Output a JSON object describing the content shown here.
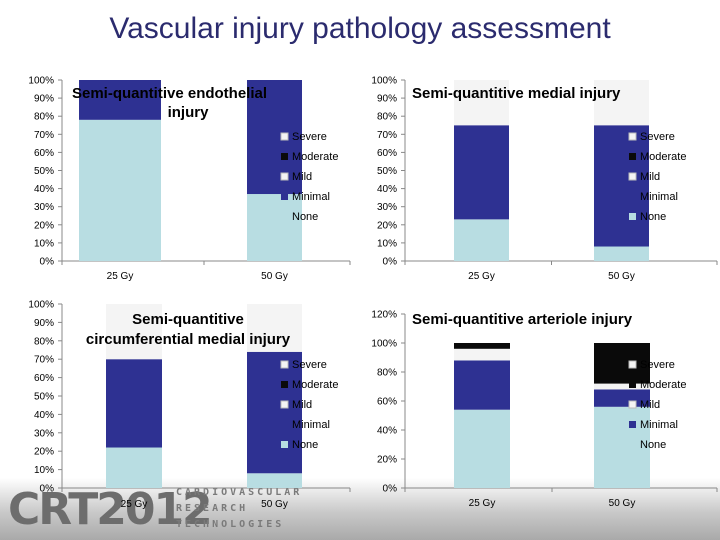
{
  "page": {
    "title": "Vascular injury pathology assessment"
  },
  "footer": {
    "logo": "CRT2012",
    "line1": "CARDIOVASCULAR",
    "line2": "RESEARCH",
    "line3": "TECHNOLOGIES"
  },
  "colors": {
    "None": "#b8dde2",
    "Minimal": "#2e3192",
    "Mild": "#f4f4f4",
    "Moderate": "#0a0a0a",
    "Severe": "#f4f4f4"
  },
  "chart_data": [
    {
      "type": "bar",
      "stacked": true,
      "title": "Semi-quantitive endothelial injury",
      "categories": [
        "25 Gy",
        "50 Gy"
      ],
      "ylim": [
        0,
        100
      ],
      "yticks": [
        "0%",
        "10%",
        "20%",
        "30%",
        "40%",
        "50%",
        "60%",
        "70%",
        "80%",
        "90%",
        "100%"
      ],
      "legend": [
        "Severe",
        "Moderate",
        "Mild",
        "Minimal",
        "None"
      ],
      "series": [
        {
          "name": "None",
          "values": [
            78,
            37
          ]
        },
        {
          "name": "Minimal",
          "values": [
            22,
            63
          ]
        },
        {
          "name": "Mild",
          "values": [
            0,
            0
          ]
        },
        {
          "name": "Moderate",
          "values": [
            0,
            0
          ]
        },
        {
          "name": "Severe",
          "values": [
            0,
            0
          ]
        }
      ]
    },
    {
      "type": "bar",
      "stacked": true,
      "title": "Semi-quantitive medial injury",
      "categories": [
        "25 Gy",
        "50 Gy"
      ],
      "ylim": [
        0,
        100
      ],
      "yticks": [
        "0%",
        "10%",
        "20%",
        "30%",
        "40%",
        "50%",
        "60%",
        "70%",
        "80%",
        "90%",
        "100%"
      ],
      "legend": [
        "Severe",
        "Moderate",
        "Mild",
        "Minimal",
        "None"
      ],
      "series": [
        {
          "name": "None",
          "values": [
            23,
            8
          ]
        },
        {
          "name": "Minimal",
          "values": [
            52,
            67
          ]
        },
        {
          "name": "Mild",
          "values": [
            25,
            25
          ]
        },
        {
          "name": "Moderate",
          "values": [
            0,
            0
          ]
        },
        {
          "name": "Severe",
          "values": [
            0,
            0
          ]
        }
      ]
    },
    {
      "type": "bar",
      "stacked": true,
      "title": "Semi-quantitive circumferential medial injury",
      "categories": [
        "25 Gy",
        "50 Gy"
      ],
      "ylim": [
        0,
        100
      ],
      "yticks": [
        "0%",
        "10%",
        "20%",
        "30%",
        "40%",
        "50%",
        "60%",
        "70%",
        "80%",
        "90%",
        "100%"
      ],
      "legend": [
        "Severe",
        "Moderate",
        "Mild",
        "Minimal",
        "None"
      ],
      "series": [
        {
          "name": "None",
          "values": [
            22,
            8
          ]
        },
        {
          "name": "Minimal",
          "values": [
            48,
            66
          ]
        },
        {
          "name": "Mild",
          "values": [
            30,
            26
          ]
        },
        {
          "name": "Moderate",
          "values": [
            0,
            0
          ]
        },
        {
          "name": "Severe",
          "values": [
            0,
            0
          ]
        }
      ]
    },
    {
      "type": "bar",
      "stacked": true,
      "title": "Semi-quantitive arteriole injury",
      "categories": [
        "25 Gy",
        "50 Gy"
      ],
      "ylim": [
        0,
        120
      ],
      "yticks": [
        "0%",
        "20%",
        "40%",
        "60%",
        "80%",
        "100%",
        "120%"
      ],
      "legend": [
        "Severe",
        "Moderate",
        "Mild",
        "Minimal",
        "None"
      ],
      "series": [
        {
          "name": "None",
          "values": [
            54,
            56
          ]
        },
        {
          "name": "Minimal",
          "values": [
            34,
            12
          ]
        },
        {
          "name": "Mild",
          "values": [
            8,
            4
          ]
        },
        {
          "name": "Moderate",
          "values": [
            4,
            28
          ]
        },
        {
          "name": "Severe",
          "values": [
            0,
            0
          ]
        }
      ]
    }
  ]
}
